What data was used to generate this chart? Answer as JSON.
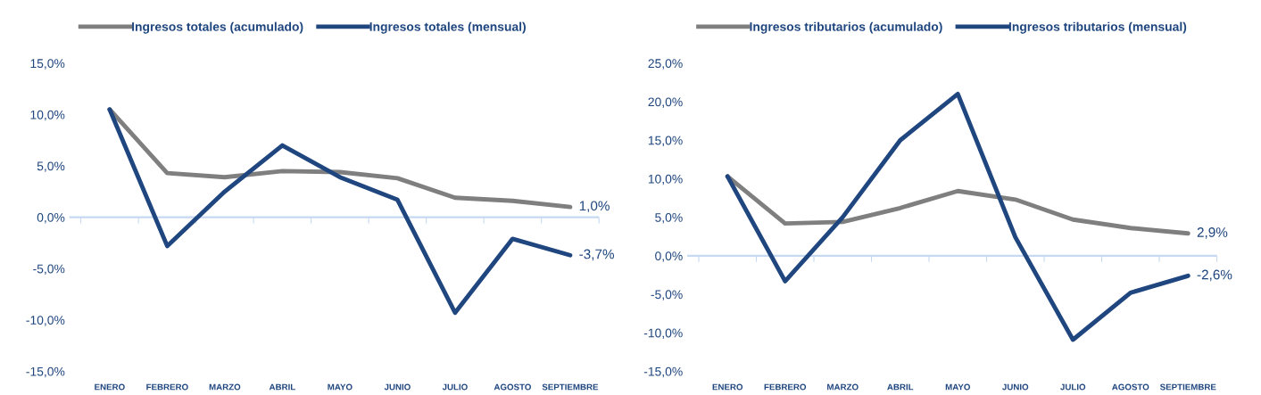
{
  "chart_data": [
    {
      "type": "line",
      "legend": "top",
      "marker": "none",
      "line_style": "solid",
      "grid": false,
      "categories": [
        "ENERO",
        "FEBRERO",
        "MARZO",
        "ABRIL",
        "MAYO",
        "JUNIO",
        "JULIO",
        "AGOSTO",
        "SEPTIEMBRE"
      ],
      "ylim": [
        -15,
        15
      ],
      "ref_lines": [
        {
          "axis": "y",
          "value": 0,
          "color": "#c6d9f1"
        }
      ],
      "yticks": [
        {
          "value": -15,
          "label": "-15,0%"
        },
        {
          "value": -10,
          "label": "-10,0%"
        },
        {
          "value": -5,
          "label": "-5,0%"
        },
        {
          "value": 0,
          "label": "0,0%"
        },
        {
          "value": 5,
          "label": "5,0%"
        },
        {
          "value": 10,
          "label": "10,0%"
        },
        {
          "value": 15,
          "label": "15,0%"
        }
      ],
      "series": [
        {
          "name": "Ingresos totales (acumulado)",
          "color": "#7f7f7f",
          "values": [
            10.5,
            4.3,
            3.9,
            4.5,
            4.4,
            3.8,
            1.9,
            1.6,
            1.0
          ],
          "value_labels": [
            null,
            null,
            null,
            null,
            null,
            null,
            null,
            null,
            "1,0%"
          ]
        },
        {
          "name": "Ingresos totales (mensual)",
          "color": "#1f467f",
          "values": [
            10.5,
            -2.8,
            2.5,
            7.0,
            3.9,
            1.7,
            -9.3,
            -2.1,
            -3.7
          ],
          "value_labels": [
            null,
            null,
            null,
            null,
            null,
            null,
            null,
            null,
            "-3,7%"
          ]
        }
      ]
    },
    {
      "type": "line",
      "legend": "top",
      "marker": "none",
      "line_style": "solid",
      "grid": false,
      "categories": [
        "ENERO",
        "FEBRERO",
        "MARZO",
        "ABRIL",
        "MAYO",
        "JUNIO",
        "JULIO",
        "AGOSTO",
        "SEPTIEMBRE"
      ],
      "ylim": [
        -15,
        25
      ],
      "ref_lines": [
        {
          "axis": "y",
          "value": 0,
          "color": "#c6d9f1"
        }
      ],
      "yticks": [
        {
          "value": -15,
          "label": "-15,0%"
        },
        {
          "value": -10,
          "label": "-10,0%"
        },
        {
          "value": -5,
          "label": "-5,0%"
        },
        {
          "value": 0,
          "label": "0,0%"
        },
        {
          "value": 5,
          "label": "5,0%"
        },
        {
          "value": 10,
          "label": "10,0%"
        },
        {
          "value": 15,
          "label": "15,0%"
        },
        {
          "value": 20,
          "label": "20,0%"
        },
        {
          "value": 25,
          "label": "25,0%"
        }
      ],
      "series": [
        {
          "name": "Ingresos tributarios (acumulado)",
          "color": "#7f7f7f",
          "values": [
            10.3,
            4.2,
            4.4,
            6.2,
            8.4,
            7.3,
            4.7,
            3.6,
            2.9
          ],
          "value_labels": [
            null,
            null,
            null,
            null,
            null,
            null,
            null,
            null,
            "2,9%"
          ]
        },
        {
          "name": "Ingresos tributarios (mensual)",
          "color": "#1f467f",
          "values": [
            10.3,
            -3.3,
            5.0,
            15.0,
            21.0,
            2.4,
            -10.9,
            -4.8,
            -2.6
          ],
          "value_labels": [
            null,
            null,
            null,
            null,
            null,
            null,
            null,
            null,
            "-2,6%"
          ]
        }
      ]
    }
  ]
}
